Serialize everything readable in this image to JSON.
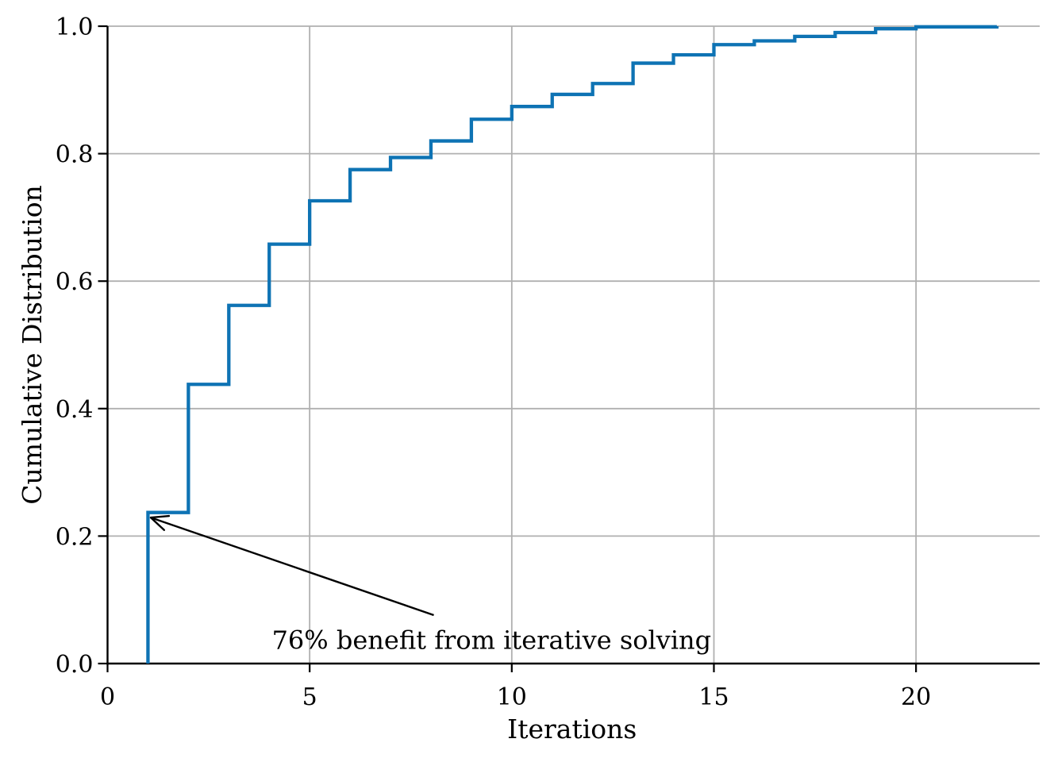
{
  "figure": {
    "background": "#ffffff"
  },
  "chart_data": {
    "type": "line",
    "line_style": "steps-post",
    "title": "",
    "xlabel": "Iterations",
    "ylabel": "Cumulative Distribution",
    "x": [
      1,
      2,
      3,
      4,
      5,
      6,
      7,
      8,
      9,
      10,
      11,
      12,
      13,
      14,
      15,
      16,
      17,
      18,
      19,
      20,
      21,
      22
    ],
    "y": [
      0.237,
      0.438,
      0.562,
      0.658,
      0.726,
      0.775,
      0.794,
      0.82,
      0.854,
      0.874,
      0.893,
      0.91,
      0.942,
      0.955,
      0.971,
      0.977,
      0.984,
      0.99,
      0.996,
      0.999,
      0.999,
      1.0
    ],
    "start_value": 0.0,
    "xlim": [
      0,
      23.06
    ],
    "ylim": [
      0,
      1.0
    ],
    "xticks": [
      0,
      5,
      10,
      15,
      20
    ],
    "xtick_labels": [
      "0",
      "5",
      "10",
      "15",
      "20"
    ],
    "yticks": [
      0,
      0.2,
      0.4,
      0.6,
      0.8,
      1.0
    ],
    "ytick_labels": [
      "0.0",
      "0.2",
      "0.4",
      "0.6",
      "0.8",
      "1.0"
    ],
    "grid": true,
    "legend": null,
    "line_color": "#0e73b4",
    "grid_color": "#b0b0b0",
    "axis_color": "#000000",
    "text_color": "#000000",
    "annotation": {
      "text": "76% benefit from iterative solving",
      "text_xy": [
        9.5,
        0.037
      ],
      "arrow_tail_xy": [
        8.07,
        0.076
      ],
      "arrow_tip_xy": [
        1.07,
        0.229
      ]
    }
  }
}
